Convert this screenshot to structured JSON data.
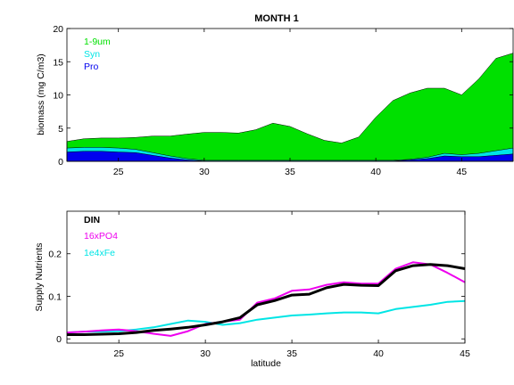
{
  "chart_data": [
    {
      "type": "area",
      "title": "MONTH 1",
      "xlabel": "",
      "ylabel": "biomass (mg C/m3)",
      "xlim": [
        22,
        48
      ],
      "ylim": [
        0,
        20
      ],
      "xticks": [
        25,
        30,
        35,
        40,
        45
      ],
      "yticks": [
        0,
        5,
        10,
        15,
        20
      ],
      "grid": false,
      "stacked": true,
      "legend_placement": "top-left",
      "x": [
        22,
        23,
        24,
        25,
        26,
        27,
        28,
        29,
        30,
        31,
        32,
        33,
        34,
        35,
        36,
        37,
        38,
        39,
        40,
        41,
        42,
        43,
        44,
        45,
        46,
        47,
        48
      ],
      "series": [
        {
          "name": "Pro",
          "color": "#0000ee",
          "values": [
            1.4,
            1.5,
            1.5,
            1.4,
            1.3,
            0.9,
            0.5,
            0.2,
            0.05,
            0.05,
            0.05,
            0.05,
            0.05,
            0.05,
            0.05,
            0.05,
            0.05,
            0.05,
            0.05,
            0.05,
            0.2,
            0.4,
            0.8,
            0.7,
            0.7,
            0.9,
            1.1
          ]
        },
        {
          "name": "Syn",
          "color": "#00e5e5",
          "values": [
            0.6,
            0.6,
            0.6,
            0.6,
            0.5,
            0.4,
            0.3,
            0.2,
            0.1,
            0.1,
            0.1,
            0.1,
            0.1,
            0.1,
            0.1,
            0.1,
            0.1,
            0.1,
            0.1,
            0.1,
            0.1,
            0.2,
            0.4,
            0.3,
            0.5,
            0.7,
            0.9
          ]
        },
        {
          "name": "1-9um",
          "color": "#00e000",
          "values": [
            1.0,
            1.3,
            1.4,
            1.5,
            1.8,
            2.5,
            3.0,
            3.7,
            4.2,
            4.2,
            4.1,
            4.6,
            5.6,
            5.1,
            4.0,
            3.0,
            2.6,
            3.5,
            6.5,
            9.0,
            10.0,
            10.4,
            9.8,
            9.0,
            11.2,
            13.9,
            14.3
          ]
        }
      ]
    },
    {
      "type": "line",
      "title": "",
      "xlabel": "latitude",
      "ylabel": "Supply Nutrients",
      "xlim": [
        22,
        45
      ],
      "ylim": [
        -0.01,
        0.3
      ],
      "xticks": [
        25,
        30,
        35,
        40,
        45
      ],
      "yticks": [
        0,
        0.1,
        0.2
      ],
      "ytick_labels": [
        "0",
        "0.1",
        "0.2"
      ],
      "grid": false,
      "legend_placement": "top-left",
      "x": [
        22,
        23,
        24,
        25,
        26,
        27,
        28,
        29,
        30,
        31,
        32,
        33,
        34,
        35,
        36,
        37,
        38,
        39,
        40,
        41,
        42,
        43,
        44,
        45
      ],
      "series": [
        {
          "name": "DIN",
          "color": "#000000",
          "values": [
            0.01,
            0.01,
            0.011,
            0.012,
            0.015,
            0.02,
            0.023,
            0.027,
            0.033,
            0.04,
            0.05,
            0.08,
            0.09,
            0.103,
            0.105,
            0.12,
            0.128,
            0.126,
            0.125,
            0.16,
            0.172,
            0.175,
            0.172,
            0.165
          ]
        },
        {
          "name": "16xPO4",
          "color": "#ee00ee",
          "values": [
            0.015,
            0.017,
            0.02,
            0.022,
            0.018,
            0.012,
            0.007,
            0.018,
            0.035,
            0.04,
            0.045,
            0.085,
            0.095,
            0.113,
            0.116,
            0.127,
            0.133,
            0.13,
            0.13,
            0.165,
            0.18,
            0.175,
            0.155,
            0.133
          ]
        },
        {
          "name": "1e4xFe",
          "color": "#00e5e5",
          "values": [
            0.015,
            0.017,
            0.017,
            0.018,
            0.022,
            0.027,
            0.035,
            0.043,
            0.04,
            0.033,
            0.037,
            0.045,
            0.05,
            0.055,
            0.057,
            0.06,
            0.062,
            0.062,
            0.06,
            0.07,
            0.075,
            0.08,
            0.087,
            0.089
          ]
        }
      ]
    }
  ]
}
